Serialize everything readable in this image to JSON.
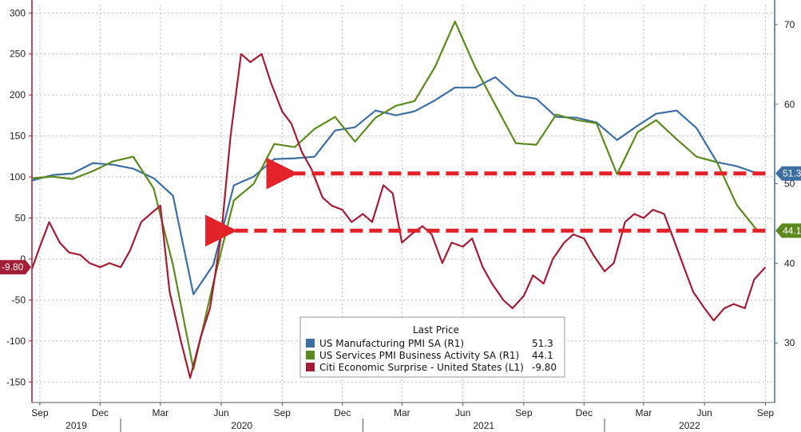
{
  "chart_data": {
    "type": "line",
    "title": "",
    "xlabel": "",
    "ylabel": "",
    "x_range": [
      "2019-08-20",
      "2022-09-15"
    ],
    "left_axis": {
      "ylim": [
        -175,
        310
      ],
      "ticks": [
        300,
        250,
        200,
        150,
        100,
        50,
        0,
        -50,
        -100,
        -150
      ]
    },
    "right_axis": {
      "ylim": [
        22.5,
        72.5
      ],
      "ticks": [
        70,
        60,
        50,
        40,
        30
      ]
    },
    "grid": true,
    "month_ticks": [
      {
        "date": "2019-09-01",
        "label": "Sep"
      },
      {
        "date": "2019-12-01",
        "label": "Dec"
      },
      {
        "date": "2020-03-01",
        "label": "Mar"
      },
      {
        "date": "2020-06-01",
        "label": "Jun"
      },
      {
        "date": "2020-09-01",
        "label": "Sep"
      },
      {
        "date": "2020-12-01",
        "label": "Dec"
      },
      {
        "date": "2021-03-01",
        "label": "Mar"
      },
      {
        "date": "2021-06-01",
        "label": "Jun"
      },
      {
        "date": "2021-09-01",
        "label": "Sep"
      },
      {
        "date": "2021-12-01",
        "label": "Dec"
      },
      {
        "date": "2022-03-01",
        "label": "Mar"
      },
      {
        "date": "2022-06-01",
        "label": "Jun"
      },
      {
        "date": "2022-09-01",
        "label": "Sep"
      }
    ],
    "year_labels": [
      {
        "label": "2019",
        "start": "2019-08-20",
        "end": "2020-01-01"
      },
      {
        "label": "2020",
        "start": "2020-01-01",
        "end": "2021-01-01"
      },
      {
        "label": "2021",
        "start": "2021-01-01",
        "end": "2022-01-01"
      },
      {
        "label": "2022",
        "start": "2022-01-01",
        "end": "2022-09-15"
      }
    ],
    "legend": {
      "title": "Last Price",
      "placement": "bottom-center",
      "entries": [
        {
          "label": "US Manufacturing PMI SA  (R1)",
          "value": "51.3"
        },
        {
          "label": "US Services PMI Business Activity SA  (R1)",
          "value": "44.1"
        },
        {
          "label": "Citi Economic Surprise - United States  (L1)",
          "value": "-9.80"
        }
      ]
    },
    "series": [
      {
        "name": "US Manufacturing PMI SA",
        "axis": "right",
        "color": "#3d6fa3",
        "badge": "51.3",
        "points": [
          [
            "2019-08-20",
            50.4
          ],
          [
            "2019-09-20",
            51.1
          ],
          [
            "2019-10-20",
            51.3
          ],
          [
            "2019-11-20",
            52.6
          ],
          [
            "2019-12-20",
            52.4
          ],
          [
            "2020-01-20",
            51.9
          ],
          [
            "2020-02-20",
            50.7
          ],
          [
            "2020-03-20",
            48.5
          ],
          [
            "2020-04-20",
            36.1
          ],
          [
            "2020-05-20",
            39.8
          ],
          [
            "2020-06-20",
            49.8
          ],
          [
            "2020-07-20",
            50.9
          ],
          [
            "2020-08-20",
            53.1
          ],
          [
            "2020-09-20",
            53.2
          ],
          [
            "2020-10-20",
            53.4
          ],
          [
            "2020-11-20",
            56.7
          ],
          [
            "2020-12-20",
            57.1
          ],
          [
            "2021-01-20",
            59.2
          ],
          [
            "2021-02-20",
            58.6
          ],
          [
            "2021-03-20",
            59.1
          ],
          [
            "2021-04-20",
            60.5
          ],
          [
            "2021-05-20",
            62.1
          ],
          [
            "2021-06-20",
            62.1
          ],
          [
            "2021-07-20",
            63.4
          ],
          [
            "2021-08-20",
            61.1
          ],
          [
            "2021-09-20",
            60.7
          ],
          [
            "2021-10-20",
            58.4
          ],
          [
            "2021-11-20",
            58.3
          ],
          [
            "2021-12-20",
            57.7
          ],
          [
            "2022-01-20",
            55.5
          ],
          [
            "2022-02-20",
            57.3
          ],
          [
            "2022-03-20",
            58.8
          ],
          [
            "2022-04-20",
            59.2
          ],
          [
            "2022-05-20",
            57.0
          ],
          [
            "2022-06-20",
            52.7
          ],
          [
            "2022-07-20",
            52.2
          ],
          [
            "2022-08-20",
            51.3
          ]
        ]
      },
      {
        "name": "US Services PMI Business Activity SA",
        "axis": "right",
        "color": "#5c8a1e",
        "badge": "44.1",
        "points": [
          [
            "2019-08-20",
            50.7
          ],
          [
            "2019-09-20",
            50.9
          ],
          [
            "2019-10-20",
            50.6
          ],
          [
            "2019-11-20",
            51.6
          ],
          [
            "2019-12-20",
            52.8
          ],
          [
            "2020-01-20",
            53.4
          ],
          [
            "2020-02-20",
            49.4
          ],
          [
            "2020-03-20",
            39.8
          ],
          [
            "2020-04-20",
            26.7
          ],
          [
            "2020-05-20",
            37.5
          ],
          [
            "2020-06-20",
            47.9
          ],
          [
            "2020-07-20",
            50.0
          ],
          [
            "2020-08-20",
            55.0
          ],
          [
            "2020-09-20",
            54.6
          ],
          [
            "2020-10-20",
            56.9
          ],
          [
            "2020-11-20",
            58.4
          ],
          [
            "2020-12-20",
            55.3
          ],
          [
            "2021-01-20",
            58.3
          ],
          [
            "2021-02-20",
            59.8
          ],
          [
            "2021-03-20",
            60.4
          ],
          [
            "2021-04-20",
            64.7
          ],
          [
            "2021-05-20",
            70.4
          ],
          [
            "2021-06-20",
            64.6
          ],
          [
            "2021-07-20",
            59.9
          ],
          [
            "2021-08-20",
            55.1
          ],
          [
            "2021-09-20",
            54.9
          ],
          [
            "2021-10-20",
            58.7
          ],
          [
            "2021-11-20",
            58.0
          ],
          [
            "2021-12-20",
            57.6
          ],
          [
            "2022-01-20",
            51.2
          ],
          [
            "2022-02-20",
            56.5
          ],
          [
            "2022-03-20",
            58.0
          ],
          [
            "2022-04-20",
            55.6
          ],
          [
            "2022-05-20",
            53.4
          ],
          [
            "2022-06-20",
            52.7
          ],
          [
            "2022-07-20",
            47.3
          ],
          [
            "2022-08-20",
            44.1
          ]
        ]
      },
      {
        "name": "Citi Economic Surprise - United States",
        "axis": "left",
        "color": "#a31d37",
        "badge": "-9.80",
        "points": [
          [
            "2019-08-20",
            -12
          ],
          [
            "2019-09-01",
            15
          ],
          [
            "2019-09-15",
            45
          ],
          [
            "2019-10-01",
            20
          ],
          [
            "2019-10-15",
            8
          ],
          [
            "2019-11-01",
            5
          ],
          [
            "2019-11-15",
            -5
          ],
          [
            "2019-12-01",
            -10
          ],
          [
            "2019-12-15",
            -5
          ],
          [
            "2020-01-01",
            -10
          ],
          [
            "2020-01-15",
            10
          ],
          [
            "2020-02-01",
            45
          ],
          [
            "2020-02-15",
            55
          ],
          [
            "2020-03-01",
            65
          ],
          [
            "2020-03-15",
            -40
          ],
          [
            "2020-04-01",
            -100
          ],
          [
            "2020-04-15",
            -145
          ],
          [
            "2020-05-01",
            -95
          ],
          [
            "2020-05-15",
            -60
          ],
          [
            "2020-06-01",
            30
          ],
          [
            "2020-06-15",
            150
          ],
          [
            "2020-07-01",
            250
          ],
          [
            "2020-07-15",
            240
          ],
          [
            "2020-08-01",
            250
          ],
          [
            "2020-08-15",
            215
          ],
          [
            "2020-09-01",
            180
          ],
          [
            "2020-09-15",
            165
          ],
          [
            "2020-10-01",
            130
          ],
          [
            "2020-10-15",
            110
          ],
          [
            "2020-11-01",
            75
          ],
          [
            "2020-11-15",
            65
          ],
          [
            "2020-12-01",
            60
          ],
          [
            "2020-12-15",
            45
          ],
          [
            "2021-01-01",
            55
          ],
          [
            "2021-01-15",
            45
          ],
          [
            "2021-02-01",
            90
          ],
          [
            "2021-02-15",
            80
          ],
          [
            "2021-03-01",
            20
          ],
          [
            "2021-03-15",
            30
          ],
          [
            "2021-04-01",
            40
          ],
          [
            "2021-04-15",
            30
          ],
          [
            "2021-05-01",
            -5
          ],
          [
            "2021-05-15",
            20
          ],
          [
            "2021-06-01",
            15
          ],
          [
            "2021-06-15",
            25
          ],
          [
            "2021-07-01",
            -10
          ],
          [
            "2021-07-15",
            -30
          ],
          [
            "2021-08-01",
            -50
          ],
          [
            "2021-08-15",
            -60
          ],
          [
            "2021-09-01",
            -45
          ],
          [
            "2021-09-15",
            -20
          ],
          [
            "2021-10-01",
            -30
          ],
          [
            "2021-10-15",
            0
          ],
          [
            "2021-11-01",
            20
          ],
          [
            "2021-11-15",
            30
          ],
          [
            "2021-12-01",
            25
          ],
          [
            "2021-12-15",
            5
          ],
          [
            "2022-01-01",
            -15
          ],
          [
            "2022-01-15",
            -5
          ],
          [
            "2022-02-01",
            45
          ],
          [
            "2022-02-15",
            55
          ],
          [
            "2022-03-01",
            50
          ],
          [
            "2022-03-15",
            60
          ],
          [
            "2022-04-01",
            55
          ],
          [
            "2022-04-15",
            25
          ],
          [
            "2022-05-01",
            -10
          ],
          [
            "2022-05-15",
            -40
          ],
          [
            "2022-06-01",
            -60
          ],
          [
            "2022-06-15",
            -75
          ],
          [
            "2022-07-01",
            -60
          ],
          [
            "2022-07-15",
            -55
          ],
          [
            "2022-08-01",
            -60
          ],
          [
            "2022-08-15",
            -25
          ],
          [
            "2022-09-01",
            -10
          ]
        ]
      }
    ],
    "annotations": [
      {
        "type": "dashed-arrow",
        "color": "#e2232a",
        "axis": "right",
        "value": 51.3,
        "from": "2022-09-01",
        "to": "2020-09-01"
      },
      {
        "type": "dashed-arrow",
        "color": "#e2232a",
        "axis": "right",
        "value": 44.1,
        "from": "2022-09-01",
        "to": "2020-06-01"
      }
    ]
  }
}
